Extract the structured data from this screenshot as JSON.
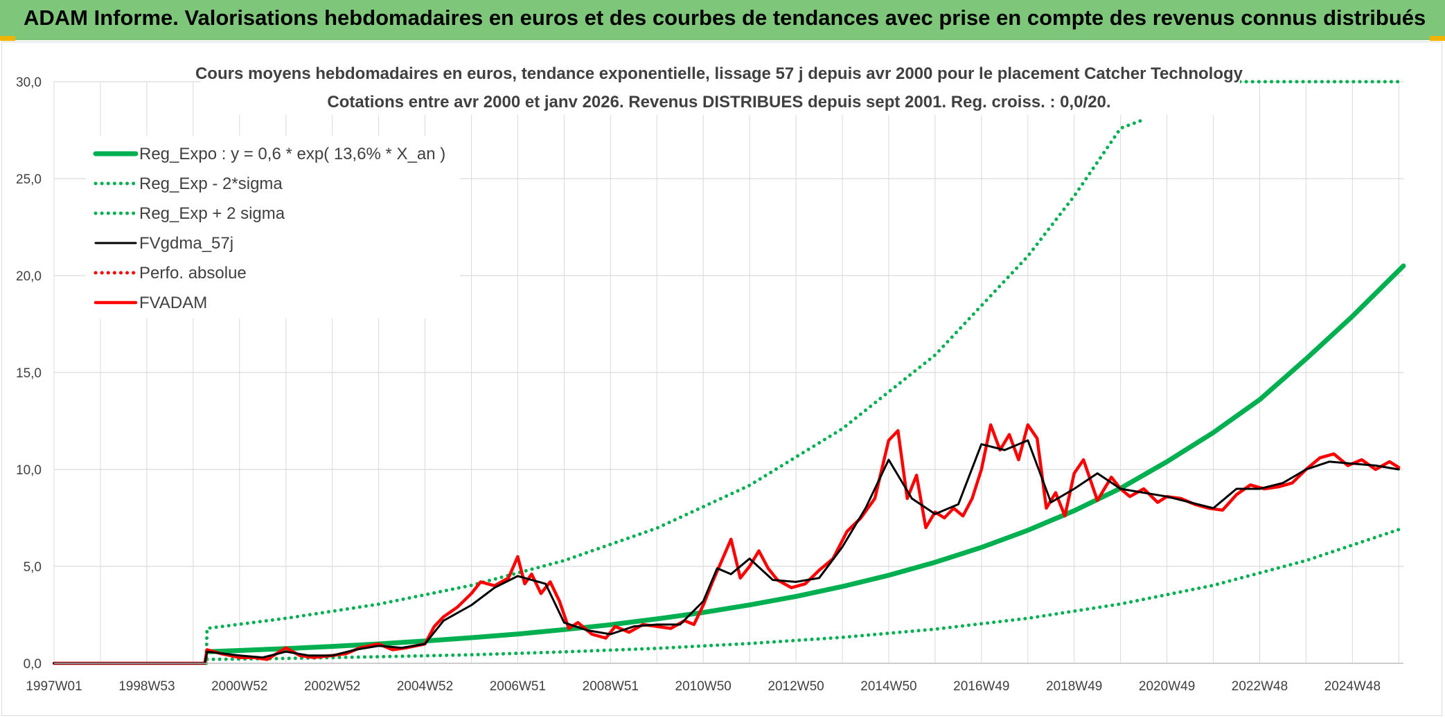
{
  "header": {
    "title": "ADAM Informe. Valorisations hebdomadaires en euros et des courbes de tendances avec prise en compte des revenus connus distribués"
  },
  "colors": {
    "header_bg": "#7dc67a",
    "green": "#00b050",
    "red": "#ff0000",
    "black": "#000000",
    "grid": "#d9d9d9",
    "text": "#404040"
  },
  "chart_data": {
    "type": "line",
    "title": "Cours moyens hebdomadaires en euros, tendance exponentielle, lissage 57 j depuis avr 2000 pour le placement Catcher Technology",
    "subtitle": "Cotations entre avr 2000 et janv 2026. Revenus DISTRIBUES depuis sept 2001. Reg. croiss. : 0,0/20.",
    "xlabel": "",
    "ylabel": "",
    "xlim": [
      1997.0,
      2026.1
    ],
    "ylim": [
      0,
      30
    ],
    "y_ticks": [
      "0,0",
      "5,0",
      "10,0",
      "15,0",
      "20,0",
      "25,0",
      "30,0"
    ],
    "x_ticks": [
      {
        "label": "1997W01",
        "year": 1997.0
      },
      {
        "label": "1998W53",
        "year": 1999.0
      },
      {
        "label": "2000W52",
        "year": 2001.0
      },
      {
        "label": "2002W52",
        "year": 2003.0
      },
      {
        "label": "2004W52",
        "year": 2005.0
      },
      {
        "label": "2006W51",
        "year": 2007.0
      },
      {
        "label": "2008W51",
        "year": 2009.0
      },
      {
        "label": "2010W50",
        "year": 2011.0
      },
      {
        "label": "2012W50",
        "year": 2013.0
      },
      {
        "label": "2014W50",
        "year": 2015.0
      },
      {
        "label": "2016W49",
        "year": 2017.0
      },
      {
        "label": "2018W49",
        "year": 2019.0
      },
      {
        "label": "2020W49",
        "year": 2021.0
      },
      {
        "label": "2022W48",
        "year": 2023.0
      },
      {
        "label": "2024W48",
        "year": 2025.0
      }
    ],
    "grid": true,
    "legend_position": "top-left",
    "series": [
      {
        "name": "Reg_Expo : y = 0,6 * exp( 13,6% *  X_an )",
        "color": "#00b050",
        "style": "solid-thick",
        "x": [
          2000.3,
          2001,
          2002,
          2003,
          2004,
          2005,
          2006,
          2007,
          2008,
          2009,
          2010,
          2011,
          2012,
          2013,
          2014,
          2015,
          2016,
          2017,
          2018,
          2019,
          2020,
          2021,
          2022,
          2023,
          2024,
          2025,
          2026.1
        ],
        "values": [
          0.6,
          0.66,
          0.76,
          0.87,
          1.0,
          1.15,
          1.32,
          1.51,
          1.74,
          1.99,
          2.29,
          2.62,
          3.01,
          3.45,
          3.96,
          4.54,
          5.21,
          5.98,
          6.86,
          7.87,
          9.03,
          10.4,
          11.9,
          13.6,
          15.7,
          17.9,
          20.5
        ]
      },
      {
        "name": "Reg_Exp - 2*sigma",
        "color": "#00b050",
        "style": "dotted",
        "x": [
          2000.3,
          2002,
          2004,
          2006,
          2008,
          2010,
          2012,
          2014,
          2016,
          2018,
          2020,
          2022,
          2024,
          2026.0
        ],
        "values": [
          0.2,
          0.25,
          0.34,
          0.44,
          0.59,
          0.77,
          1.02,
          1.34,
          1.76,
          2.32,
          3.06,
          4.02,
          5.3,
          6.9
        ]
      },
      {
        "name": "Reg_Exp + 2 sigma",
        "color": "#00b050",
        "style": "dotted",
        "x": [
          2000.28,
          2000.3,
          2002,
          2004,
          2006,
          2008,
          2010,
          2012,
          2014,
          2016,
          2018,
          2019,
          2020,
          2020.45
        ],
        "values": [
          0.0,
          1.8,
          2.32,
          3.05,
          4.02,
          5.3,
          6.97,
          9.18,
          12.1,
          15.9,
          21.0,
          24.1,
          27.6,
          28.0
        ],
        "clipped_value_label": "30,0"
      },
      {
        "name": "FVgdma_57j",
        "color": "#000000",
        "style": "solid",
        "x": [
          1997.0,
          2000.25,
          2000.3,
          2001,
          2001.5,
          2002,
          2002.5,
          2003,
          2003.5,
          2004,
          2004.5,
          2005,
          2005.4,
          2006,
          2006.5,
          2007,
          2007.3,
          2007.6,
          2008,
          2008.5,
          2009,
          2009.5,
          2010,
          2010.5,
          2011,
          2011.3,
          2011.6,
          2012,
          2012.5,
          2013,
          2013.5,
          2014,
          2014.5,
          2015,
          2015.5,
          2016,
          2016.5,
          2017,
          2017.5,
          2018,
          2018.5,
          2019,
          2019.5,
          2020,
          2020.5,
          2021,
          2021.5,
          2022,
          2022.5,
          2023,
          2023.5,
          2024,
          2024.5,
          2025,
          2025.5,
          2026.0
        ],
        "values": [
          0,
          0,
          0.6,
          0.4,
          0.3,
          0.6,
          0.4,
          0.4,
          0.7,
          0.9,
          0.8,
          1.0,
          2.2,
          3.0,
          3.9,
          4.5,
          4.3,
          4.1,
          2.1,
          1.7,
          1.5,
          1.9,
          2.0,
          2.0,
          3.2,
          4.9,
          4.6,
          5.4,
          4.3,
          4.2,
          4.4,
          6.0,
          8.0,
          10.5,
          8.5,
          7.7,
          8.2,
          11.3,
          11.0,
          11.5,
          8.3,
          9.0,
          9.8,
          9.0,
          8.8,
          8.6,
          8.3,
          8.0,
          9.0,
          9.0,
          9.3,
          10.0,
          10.4,
          10.3,
          10.2,
          10.0
        ]
      },
      {
        "name": "Perfo. absolue",
        "color": "#ff0000",
        "style": "dotted",
        "values": []
      },
      {
        "name": "FVADAM",
        "color": "#ff0000",
        "style": "solid-thick",
        "x": [
          1997.0,
          2000.25,
          2000.3,
          2000.6,
          2001,
          2001.3,
          2001.6,
          2002,
          2002.3,
          2002.6,
          2003,
          2003.3,
          2003.6,
          2004,
          2004.3,
          2004.6,
          2005,
          2005.2,
          2005.4,
          2005.7,
          2006,
          2006.2,
          2006.5,
          2006.8,
          2007.0,
          2007.15,
          2007.3,
          2007.5,
          2007.7,
          2007.9,
          2008.1,
          2008.3,
          2008.6,
          2008.9,
          2009.1,
          2009.4,
          2009.7,
          2010,
          2010.3,
          2010.6,
          2010.8,
          2011.0,
          2011.2,
          2011.4,
          2011.6,
          2011.8,
          2012.0,
          2012.2,
          2012.4,
          2012.6,
          2012.9,
          2013.2,
          2013.5,
          2013.8,
          2014.1,
          2014.4,
          2014.7,
          2015.0,
          2015.2,
          2015.4,
          2015.6,
          2015.8,
          2016.0,
          2016.2,
          2016.4,
          2016.6,
          2016.8,
          2017.0,
          2017.2,
          2017.4,
          2017.6,
          2017.8,
          2018.0,
          2018.2,
          2018.4,
          2018.6,
          2018.8,
          2019.0,
          2019.2,
          2019.5,
          2019.8,
          2020.0,
          2020.2,
          2020.5,
          2020.8,
          2021.0,
          2021.3,
          2021.6,
          2021.9,
          2022.2,
          2022.5,
          2022.8,
          2023.1,
          2023.4,
          2023.7,
          2024.0,
          2024.3,
          2024.6,
          2024.9,
          2025.2,
          2025.5,
          2025.8,
          2026.0
        ],
        "values": [
          0,
          0,
          0.7,
          0.5,
          0.3,
          0.3,
          0.2,
          0.8,
          0.4,
          0.3,
          0.4,
          0.5,
          0.8,
          1.0,
          0.7,
          0.8,
          1.0,
          1.9,
          2.4,
          2.9,
          3.6,
          4.2,
          4.0,
          4.4,
          5.5,
          4.1,
          4.6,
          3.6,
          4.2,
          3.2,
          1.8,
          2.1,
          1.5,
          1.3,
          1.9,
          1.6,
          2.0,
          1.9,
          1.8,
          2.2,
          2.0,
          3.0,
          4.2,
          5.3,
          6.4,
          4.4,
          5.0,
          5.8,
          4.9,
          4.3,
          3.9,
          4.1,
          4.8,
          5.4,
          6.8,
          7.5,
          8.5,
          11.5,
          12.0,
          8.5,
          9.7,
          7.0,
          7.8,
          7.5,
          8.0,
          7.6,
          8.5,
          10.0,
          12.3,
          11.0,
          11.8,
          10.5,
          12.3,
          11.6,
          8.0,
          8.8,
          7.6,
          9.8,
          10.5,
          8.4,
          9.6,
          9.0,
          8.6,
          9.0,
          8.3,
          8.6,
          8.5,
          8.2,
          8.0,
          7.9,
          8.7,
          9.2,
          9.0,
          9.1,
          9.3,
          10.0,
          10.6,
          10.8,
          10.2,
          10.5,
          10.0,
          10.4,
          10.1
        ]
      }
    ]
  }
}
